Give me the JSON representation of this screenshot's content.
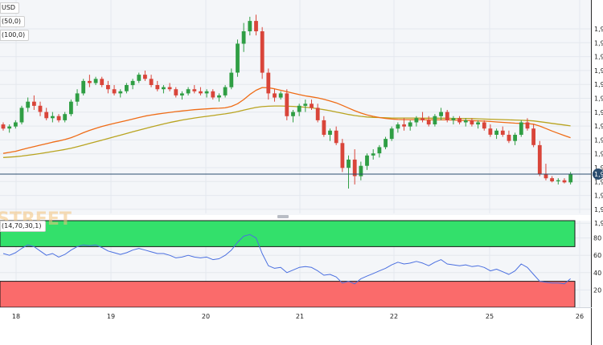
{
  "colors": {
    "bull": "#2f9e44",
    "bear": "#d9453a",
    "sma50": "#ef6c16",
    "sma100": "#b9a420",
    "rsi": "#4a6fe0",
    "overbought": "#33e06b",
    "oversold": "#fa6b6b",
    "price_line": "#2b4d6e",
    "grid": "#e4e8ee"
  },
  "legend": {
    "symbol": "USD",
    "sma50": "(50,0)",
    "sma100": "(100,0)",
    "rsi": "(14,70,30,1)"
  },
  "watermark": "STREET",
  "price_axis_labels": [
    "1,9",
    "1,9",
    "1,9",
    "1,9",
    "1,9",
    "1,9",
    "1,9",
    "1,9",
    "1,9",
    "1,9",
    "1,9",
    "1,9",
    "1,9",
    "1,9",
    "1,9"
  ],
  "last_price_tag": "1,9",
  "rsi_axis_labels": [
    "80",
    "60",
    "40",
    "20"
  ],
  "x_axis_labels": [
    "18",
    "19",
    "20",
    "21",
    "22",
    "25",
    "26"
  ],
  "chart_data": {
    "type": "candlestick",
    "candles": [
      [
        43,
        44,
        40,
        41
      ],
      [
        41,
        43,
        39,
        42
      ],
      [
        42,
        45,
        41,
        44
      ],
      [
        44,
        52,
        43,
        51
      ],
      [
        51,
        56,
        49,
        54
      ],
      [
        54,
        57,
        50,
        52
      ],
      [
        52,
        54,
        47,
        49
      ],
      [
        49,
        51,
        45,
        46
      ],
      [
        46,
        49,
        44,
        47
      ],
      [
        47,
        48,
        44,
        45
      ],
      [
        45,
        49,
        44,
        48
      ],
      [
        48,
        55,
        47,
        54
      ],
      [
        54,
        60,
        52,
        58
      ],
      [
        58,
        65,
        57,
        64
      ],
      [
        64,
        67,
        61,
        63
      ],
      [
        63,
        66,
        62,
        65
      ],
      [
        65,
        66,
        61,
        62
      ],
      [
        62,
        64,
        58,
        60
      ],
      [
        60,
        62,
        57,
        58
      ],
      [
        58,
        60,
        56,
        59
      ],
      [
        59,
        63,
        58,
        62
      ],
      [
        62,
        65,
        60,
        64
      ],
      [
        64,
        68,
        63,
        67
      ],
      [
        67,
        69,
        64,
        65
      ],
      [
        65,
        67,
        61,
        62
      ],
      [
        62,
        64,
        59,
        60
      ],
      [
        60,
        62,
        58,
        61
      ],
      [
        61,
        63,
        59,
        60
      ],
      [
        60,
        61,
        56,
        57
      ],
      [
        57,
        59,
        55,
        58
      ],
      [
        58,
        61,
        57,
        60
      ],
      [
        60,
        62,
        58,
        59
      ],
      [
        59,
        61,
        57,
        58
      ],
      [
        58,
        60,
        56,
        59
      ],
      [
        59,
        60,
        55,
        56
      ],
      [
        56,
        58,
        54,
        57
      ],
      [
        57,
        62,
        56,
        61
      ],
      [
        61,
        70,
        60,
        68
      ],
      [
        68,
        84,
        66,
        82
      ],
      [
        82,
        92,
        78,
        88
      ],
      [
        88,
        95,
        86,
        93
      ],
      [
        93,
        96,
        86,
        88
      ],
      [
        88,
        90,
        65,
        68
      ],
      [
        68,
        70,
        55,
        58
      ],
      [
        58,
        60,
        54,
        56
      ],
      [
        56,
        59,
        55,
        58
      ],
      [
        58,
        60,
        45,
        47
      ],
      [
        47,
        50,
        44,
        49
      ],
      [
        49,
        53,
        47,
        52
      ],
      [
        52,
        55,
        49,
        53
      ],
      [
        53,
        55,
        50,
        51
      ],
      [
        51,
        53,
        44,
        45
      ],
      [
        45,
        47,
        37,
        38
      ],
      [
        38,
        41,
        35,
        40
      ],
      [
        40,
        42,
        33,
        34
      ],
      [
        34,
        36,
        20,
        22
      ],
      [
        22,
        28,
        12,
        26
      ],
      [
        26,
        31,
        14,
        18
      ],
      [
        18,
        25,
        16,
        23
      ],
      [
        23,
        29,
        21,
        28
      ],
      [
        28,
        31,
        26,
        29
      ],
      [
        29,
        33,
        27,
        32
      ],
      [
        32,
        37,
        31,
        36
      ],
      [
        36,
        42,
        35,
        41
      ],
      [
        41,
        44,
        39,
        43
      ],
      [
        43,
        46,
        40,
        42
      ],
      [
        42,
        45,
        40,
        44
      ],
      [
        44,
        47,
        42,
        46
      ],
      [
        46,
        49,
        44,
        45
      ],
      [
        45,
        47,
        42,
        43
      ],
      [
        43,
        48,
        42,
        47
      ],
      [
        47,
        51,
        45,
        49
      ],
      [
        49,
        50,
        44,
        45
      ],
      [
        45,
        47,
        43,
        46
      ],
      [
        46,
        47,
        43,
        44
      ],
      [
        44,
        46,
        42,
        45
      ],
      [
        45,
        46,
        42,
        43
      ],
      [
        43,
        45,
        41,
        44
      ],
      [
        44,
        45,
        40,
        41
      ],
      [
        41,
        43,
        37,
        38
      ],
      [
        38,
        41,
        36,
        40
      ],
      [
        40,
        42,
        37,
        38
      ],
      [
        38,
        40,
        34,
        35
      ],
      [
        35,
        39,
        33,
        38
      ],
      [
        38,
        45,
        37,
        44
      ],
      [
        44,
        46,
        40,
        41
      ],
      [
        41,
        43,
        32,
        33
      ],
      [
        33,
        35,
        18,
        19
      ],
      [
        19,
        24,
        16,
        17
      ],
      [
        17,
        18,
        15,
        15.5
      ],
      [
        15.5,
        17,
        14,
        16
      ],
      [
        16,
        17,
        14.5,
        15
      ],
      [
        15,
        20,
        14,
        19
      ]
    ],
    "sma50": [
      29,
      29.5,
      30,
      30.8,
      31.6,
      32.3,
      33,
      33.7,
      34.4,
      35,
      35.7,
      36.6,
      37.7,
      39,
      40.1,
      41.1,
      42,
      42.8,
      43.5,
      44.2,
      44.9,
      45.6,
      46.3,
      47,
      47.5,
      48,
      48.4,
      48.8,
      49.2,
      49.5,
      49.8,
      50.1,
      50.3,
      50.5,
      50.7,
      50.8,
      51,
      51.7,
      53,
      55,
      57.5,
      59.5,
      60.8,
      60.7,
      60.2,
      59.5,
      58.8,
      58.1,
      57.4,
      56.8,
      56.3,
      55.8,
      55.1,
      54.3,
      53.4,
      52.2,
      50.9,
      49.6,
      48.5,
      47.6,
      46.9,
      46.3,
      45.9,
      45.6,
      45.4,
      45.3,
      45.3,
      45.3,
      45.3,
      45.2,
      45.2,
      45.2,
      45.2,
      45.1,
      45,
      44.9,
      44.8,
      44.7,
      44.6,
      44.4,
      44.2,
      44,
      43.8,
      43.6,
      43.5,
      43.4,
      43.1,
      42.2,
      41,
      39.8,
      38.7,
      37.6,
      36.6
    ],
    "sma100": [
      27,
      27.2,
      27.4,
      27.7,
      28.1,
      28.5,
      28.9,
      29.4,
      29.9,
      30.4,
      30.9,
      31.5,
      32.2,
      33,
      33.8,
      34.6,
      35.4,
      36.2,
      37,
      37.8,
      38.6,
      39.4,
      40.2,
      41,
      41.8,
      42.5,
      43.2,
      43.9,
      44.5,
      45.1,
      45.6,
      46.1,
      46.5,
      46.9,
      47.3,
      47.7,
      48.1,
      48.6,
      49.2,
      49.9,
      50.6,
      51.2,
      51.6,
      51.8,
      51.9,
      51.9,
      51.8,
      51.7,
      51.5,
      51.3,
      51,
      50.6,
      50.1,
      49.6,
      49,
      48.4,
      47.8,
      47.3,
      46.9,
      46.6,
      46.4,
      46.3,
      46.2,
      46.1,
      46.1,
      46.1,
      46.1,
      46.1,
      46,
      46,
      46,
      46,
      46,
      45.9,
      45.9,
      45.9,
      45.8,
      45.7,
      45.6,
      45.5,
      45.4,
      45.3,
      45.2,
      45.1,
      45,
      44.9,
      44.7,
      44.3,
      43.9,
      43.5,
      43.1,
      42.7,
      42.3
    ],
    "rsi": [
      62,
      60,
      63,
      68,
      72,
      70,
      65,
      60,
      62,
      58,
      61,
      66,
      70,
      72,
      71,
      72,
      69,
      65,
      63,
      61,
      63,
      66,
      68,
      66,
      64,
      62,
      62,
      60,
      57,
      58,
      60,
      58,
      57,
      58,
      55,
      56,
      60,
      66,
      75,
      82,
      84,
      80,
      62,
      48,
      45,
      46,
      40,
      43,
      46,
      47,
      46,
      42,
      37,
      38,
      35,
      28,
      30,
      27,
      33,
      36,
      39,
      42,
      45,
      49,
      52,
      50,
      51,
      53,
      51,
      48,
      52,
      55,
      50,
      49,
      48,
      49,
      47,
      48,
      46,
      42,
      44,
      41,
      38,
      42,
      50,
      46,
      38,
      30,
      29,
      28,
      28,
      27,
      33
    ],
    "rsi_range": [
      0,
      100
    ],
    "rsi_levels": [
      30,
      70
    ],
    "x_ticks": [
      "18",
      "19",
      "20",
      "21",
      "22",
      "25",
      "26"
    ],
    "ylim": [
      0,
      100
    ]
  }
}
